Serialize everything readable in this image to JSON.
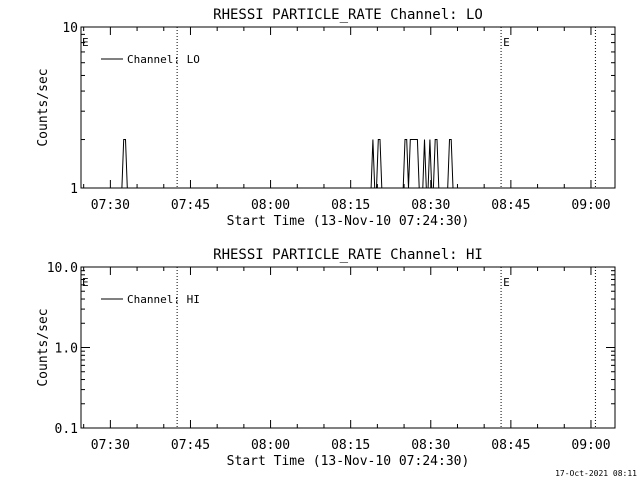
{
  "chart_data": [
    {
      "type": "line",
      "title": "RHESSI PARTICLE_RATE Channel: LO",
      "xlabel": "Start Time (13-Nov-10 07:24:30)",
      "ylabel": "Counts/sec",
      "y_scale": "log",
      "ylim": [
        1,
        10
      ],
      "y_ticks": [
        1,
        10
      ],
      "y_tick_labels": [
        "1",
        "10"
      ],
      "xlim": [
        "07:24:30",
        "09:04:30"
      ],
      "x_ticks": [
        "07:30",
        "07:45",
        "08:00",
        "08:15",
        "08:30",
        "08:45",
        "09:00"
      ],
      "grid": false,
      "legend": {
        "placement": "top-left",
        "entries": [
          "Channel: LO"
        ]
      },
      "markers": [
        {
          "x": "07:42:30",
          "label": "",
          "style": "dotted"
        },
        {
          "x": "08:43:10",
          "label": "E",
          "style": "dotted"
        },
        {
          "x": "09:00:50",
          "label": "",
          "style": "dotted"
        }
      ],
      "edge_labels": [
        {
          "x": "07:24:30",
          "label": "E"
        }
      ],
      "series": [
        {
          "name": "Channel: LO",
          "x": [
            "07:24:30",
            "07:32:10",
            "07:32:30",
            "07:32:50",
            "07:33:10",
            "08:18:50",
            "08:19:10",
            "08:19:30",
            "08:19:50",
            "08:20:10",
            "08:20:30",
            "08:20:50",
            "08:21:10",
            "08:24:50",
            "08:25:10",
            "08:25:30",
            "08:25:50",
            "08:26:10",
            "08:27:30",
            "08:27:50",
            "08:28:30",
            "08:28:50",
            "08:29:10",
            "08:29:30",
            "08:29:50",
            "08:30:10",
            "08:30:30",
            "08:30:50",
            "08:31:10",
            "08:31:30",
            "08:33:10",
            "08:33:30",
            "08:33:50",
            "08:34:10",
            "09:04:30"
          ],
          "y": [
            1,
            1,
            2,
            2,
            1,
            1,
            2,
            1,
            1,
            2,
            2,
            1,
            1,
            1,
            2,
            2,
            1,
            2,
            2,
            1,
            1,
            2,
            1,
            1,
            2,
            1,
            1,
            2,
            2,
            1,
            1,
            2,
            2,
            1,
            1
          ]
        }
      ]
    },
    {
      "type": "line",
      "title": "RHESSI PARTICLE_RATE Channel: HI",
      "xlabel": "Start Time (13-Nov-10 07:24:30)",
      "ylabel": "Counts/sec",
      "y_scale": "log",
      "ylim": [
        0.1,
        10
      ],
      "y_ticks": [
        0.1,
        1,
        10
      ],
      "y_tick_labels": [
        "0.1",
        "1.0",
        "10.0"
      ],
      "xlim": [
        "07:24:30",
        "09:04:30"
      ],
      "x_ticks": [
        "07:30",
        "07:45",
        "08:00",
        "08:15",
        "08:30",
        "08:45",
        "09:00"
      ],
      "grid": false,
      "legend": {
        "placement": "top-left",
        "entries": [
          "Channel: HI"
        ]
      },
      "markers": [
        {
          "x": "07:42:30",
          "label": "",
          "style": "dotted"
        },
        {
          "x": "08:43:10",
          "label": "E",
          "style": "dotted"
        },
        {
          "x": "09:00:50",
          "label": "",
          "style": "dotted"
        }
      ],
      "edge_labels": [
        {
          "x": "07:24:30",
          "label": "E"
        }
      ],
      "series": [
        {
          "name": "Channel: HI",
          "x": [],
          "y": []
        }
      ]
    }
  ],
  "footer": {
    "timestamp": "17-Oct-2021 08:11"
  }
}
